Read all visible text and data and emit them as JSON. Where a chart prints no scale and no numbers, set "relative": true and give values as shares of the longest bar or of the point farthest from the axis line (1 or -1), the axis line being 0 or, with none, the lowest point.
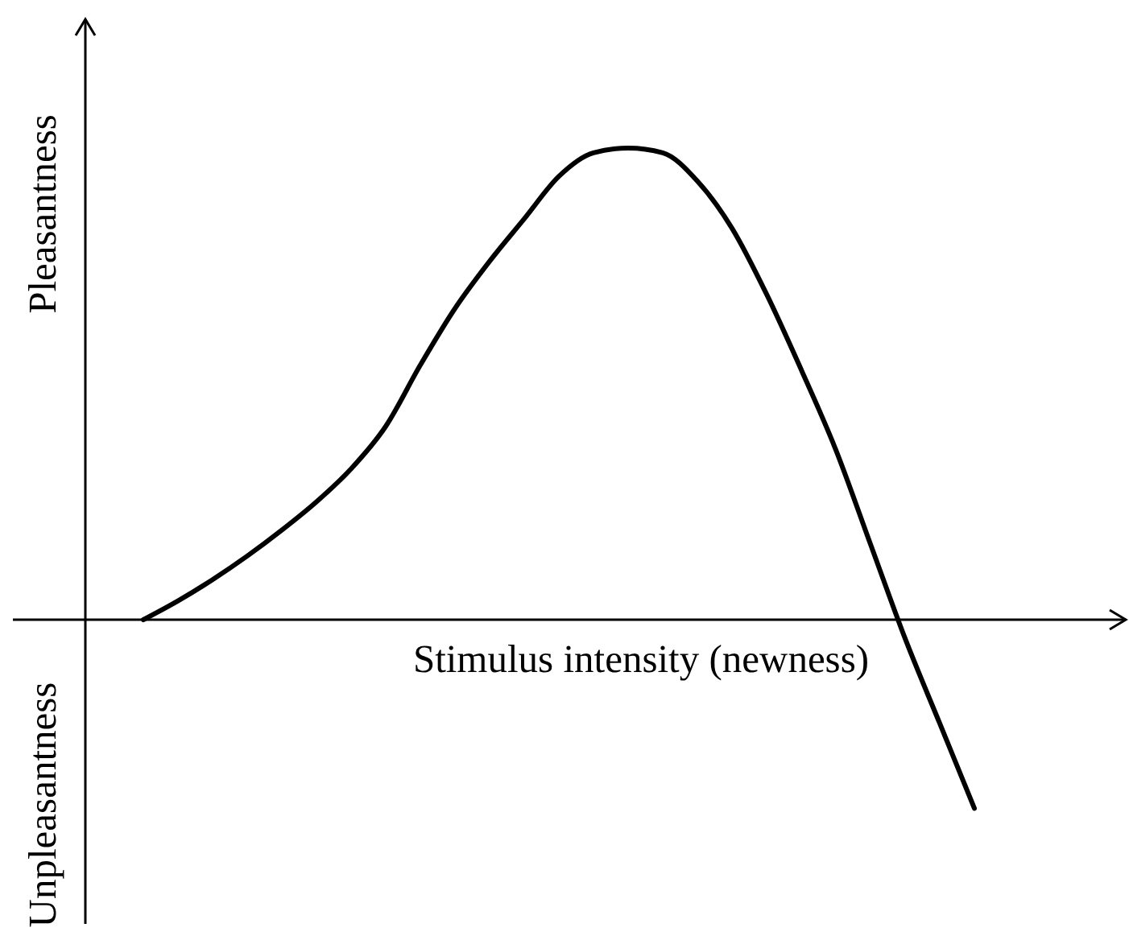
{
  "chart_data": {
    "type": "line",
    "xlabel": "Stimulus intensity (newness)",
    "ylabel": "Pleasantness",
    "annotations": [
      "Unpleasantness"
    ],
    "relative": true,
    "marker": "none",
    "categories": [
      null,
      null,
      null,
      null,
      null,
      null,
      null,
      null,
      null,
      null,
      null,
      null,
      null,
      null,
      null,
      null,
      null,
      null,
      null,
      null,
      null,
      null,
      null,
      null,
      null
    ],
    "color": "#000000",
    "values": [
      0,
      0.04,
      0.085,
      0.135,
      0.19,
      0.25,
      0.32,
      0.41,
      0.54,
      0.66,
      0.76,
      0.85,
      0.94,
      0.99,
      1,
      0.99,
      0.93,
      0.83,
      0.69,
      0.53,
      0.36,
      0.16,
      -0.04,
      -0.22,
      -0.4
    ]
  }
}
